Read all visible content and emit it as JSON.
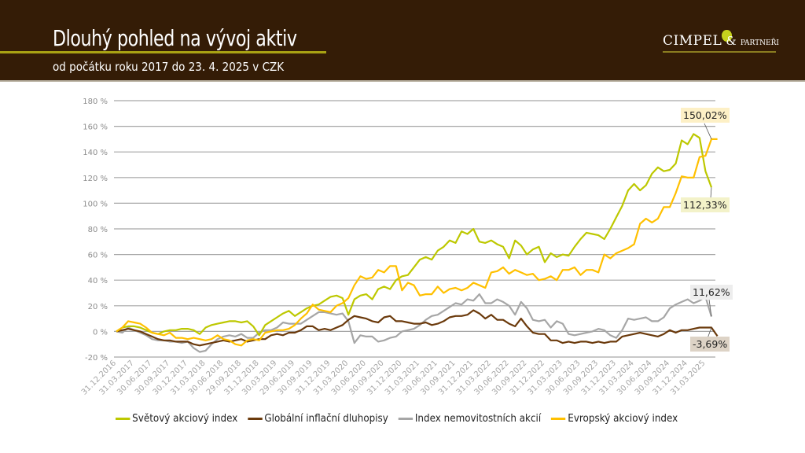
{
  "header": {
    "title": "Dlouhý pohled na vývoj aktiv",
    "subtitle": "od počátku roku 2017 do 23. 4. 2025 v CZK",
    "logo_main": "CIMPEL",
    "logo_amp": "&",
    "logo_small": "PARTNEŘI"
  },
  "chart_data": {
    "type": "line",
    "title": "Dlouhý pohled na vývoj aktiv",
    "ylabel": "",
    "xlabel": "",
    "ylim": [
      -20,
      180
    ],
    "y_ticks": [
      -20,
      0,
      20,
      40,
      60,
      80,
      100,
      120,
      140,
      160,
      180
    ],
    "y_tick_labels": [
      "-20 %",
      "0 %",
      "20 %",
      "40 %",
      "60 %",
      "80 %",
      "100 %",
      "120 %",
      "140 %",
      "160 %",
      "180 %"
    ],
    "x_tick_labels": [
      "31.12.2016",
      "31.03.2017",
      "30.06.2017",
      "30.09.2017",
      "30.12.2017",
      "31.03.2018",
      "30.06.2018",
      "29.09.2018",
      "31.12.2018",
      "30.03.2019",
      "29.06.2019",
      "30.09.2019",
      "31.12.2019",
      "31.03.2020",
      "30.06.2020",
      "30.09.2020",
      "31.12.2020",
      "31.03.2021",
      "30.06.2021",
      "30.09.2021",
      "31.12.2021",
      "31.03.2022",
      "30.06.2022",
      "30.09.2022",
      "31.12.2022",
      "31.03.2023",
      "30.06.2023",
      "30.09.2023",
      "31.12.2023",
      "31.03.2024",
      "30.06.2024",
      "30.09.2024",
      "31.12.2024",
      "31.03.2025"
    ],
    "x_note": "monthly points, index = months since 31.12.2016",
    "grid": true,
    "legend_position": "bottom",
    "series": [
      {
        "name": "Světový akciový index",
        "color": "#bdc800",
        "end_label": "112,33%",
        "values": [
          0,
          3,
          4,
          4,
          3,
          1,
          -1,
          -2,
          0,
          1,
          1,
          2,
          2,
          1,
          -2,
          3,
          5,
          6,
          7,
          8,
          8,
          7,
          8,
          4,
          -3,
          5,
          8,
          11,
          14,
          16,
          12,
          15,
          18,
          20,
          21,
          24,
          27,
          28,
          26,
          13,
          25,
          28,
          29,
          25,
          33,
          35,
          33,
          40,
          43,
          44,
          50,
          56,
          58,
          56,
          63,
          66,
          71,
          69,
          78,
          76,
          80,
          70,
          69,
          71,
          68,
          66,
          57,
          71,
          67,
          60,
          64,
          66,
          54,
          61,
          58,
          60,
          59,
          66,
          72,
          77,
          76,
          75,
          72,
          80,
          89,
          98,
          110,
          115,
          110,
          114,
          123,
          128,
          125,
          126,
          131,
          149,
          146,
          154,
          151,
          125,
          112.33
        ]
      },
      {
        "name": "Globální inflační dluhopisy",
        "color": "#6b3a0c",
        "end_label": "-3,69%",
        "values": [
          0,
          1,
          2,
          1,
          0,
          -2,
          -4,
          -6,
          -7,
          -7,
          -8,
          -8,
          -8,
          -10,
          -11,
          -10,
          -9,
          -8,
          -7,
          -8,
          -7,
          -6,
          -8,
          -7,
          -6,
          -6,
          -3,
          -2,
          -3,
          -1,
          -1,
          1,
          4,
          4,
          1,
          2,
          1,
          3,
          5,
          9,
          12,
          11,
          10,
          8,
          7,
          11,
          12,
          8,
          8,
          7,
          6,
          6,
          7,
          5,
          6,
          8,
          11,
          12,
          12,
          13,
          16.5,
          14,
          10,
          13,
          9,
          9,
          6,
          4,
          10,
          4,
          -1,
          -2,
          -2,
          -7,
          -7,
          -9,
          -8,
          -9,
          -8,
          -8,
          -9,
          -8,
          -9,
          -8,
          -8,
          -4,
          -3,
          -2,
          -1,
          -2,
          -3,
          -4,
          -2,
          1,
          -1,
          1,
          1,
          2,
          3,
          3,
          3,
          -3.69
        ]
      },
      {
        "name": "Index nemovitostních akcií",
        "color": "#a6a6a6",
        "end_label": "11,62%",
        "values": [
          0,
          -1,
          3,
          1,
          -1,
          -3,
          -6,
          -7,
          -7,
          -8,
          -8,
          -9,
          -8,
          -13,
          -16,
          -15,
          -10,
          -6,
          -4,
          -3,
          -4,
          -2,
          -5,
          -5,
          -1,
          1,
          1,
          3,
          7,
          6,
          6,
          6,
          9,
          12,
          15,
          15,
          14,
          13,
          14,
          8,
          -9,
          -3,
          -4,
          -4,
          -8,
          -7,
          -5,
          -4,
          0,
          1,
          2,
          5,
          9,
          12,
          13,
          16,
          19,
          22,
          21,
          25,
          24,
          29,
          22,
          22,
          25,
          23,
          20,
          13,
          23,
          18,
          9,
          8,
          9,
          3,
          8,
          6,
          -2,
          -3,
          -2,
          -1,
          0,
          2,
          1,
          -3,
          -5,
          1,
          10,
          9,
          10,
          11,
          8,
          8,
          11,
          18,
          21,
          23,
          25,
          22,
          24,
          27,
          11.62
        ]
      },
      {
        "name": "Evropský akciový index",
        "color": "#ffc000",
        "end_label": "150,02%",
        "values": [
          0,
          3,
          8,
          7,
          6,
          3,
          -1,
          -2,
          -3,
          -1,
          -5,
          -5,
          -6,
          -5,
          -6,
          -7,
          -6,
          -3,
          -6,
          -7,
          -10,
          -11,
          -7,
          -6,
          -7,
          -1,
          0,
          1,
          1,
          2,
          5,
          10,
          14,
          21,
          17,
          16,
          15,
          20,
          22,
          26,
          36,
          43,
          41,
          42,
          48,
          46,
          51,
          51,
          32,
          38,
          36,
          28,
          29,
          29,
          35,
          30,
          33,
          34,
          32,
          34,
          38,
          36,
          34,
          46,
          47,
          50,
          45,
          48,
          46,
          44,
          45,
          40,
          41,
          43,
          40,
          48,
          48,
          50,
          44,
          48,
          48,
          46,
          60,
          57,
          61,
          63,
          65,
          68,
          84,
          88,
          85,
          88,
          97,
          97,
          108,
          121,
          120,
          120,
          136,
          137,
          150,
          150.02
        ]
      }
    ]
  }
}
